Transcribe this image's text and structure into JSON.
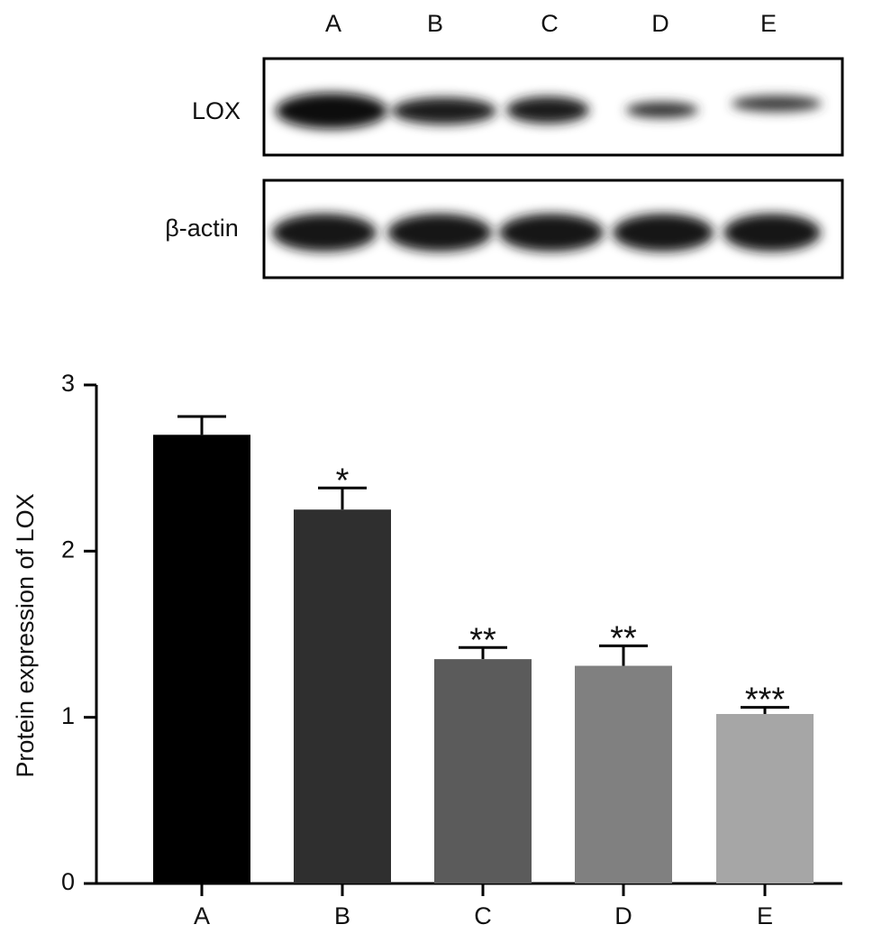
{
  "blot": {
    "lanes": [
      "A",
      "B",
      "C",
      "D",
      "E"
    ],
    "rows": [
      "LOX",
      "β-actin"
    ]
  },
  "chart_data": {
    "type": "bar",
    "y_label": "Protein expression of LOX",
    "categories": [
      "A",
      "B",
      "C",
      "D",
      "E"
    ],
    "values": [
      2.7,
      2.25,
      1.35,
      1.31,
      1.02
    ],
    "errors": [
      0.11,
      0.13,
      0.07,
      0.12,
      0.04
    ],
    "annotations": [
      null,
      "*",
      "**",
      "**",
      "***"
    ],
    "colors": [
      "#000000",
      "#2f2f2f",
      "#5b5b5b",
      "#808080",
      "#a6a6a6"
    ],
    "ylim": [
      0,
      3
    ],
    "yticks": [
      0,
      1,
      2,
      3
    ],
    "grid": false
  }
}
